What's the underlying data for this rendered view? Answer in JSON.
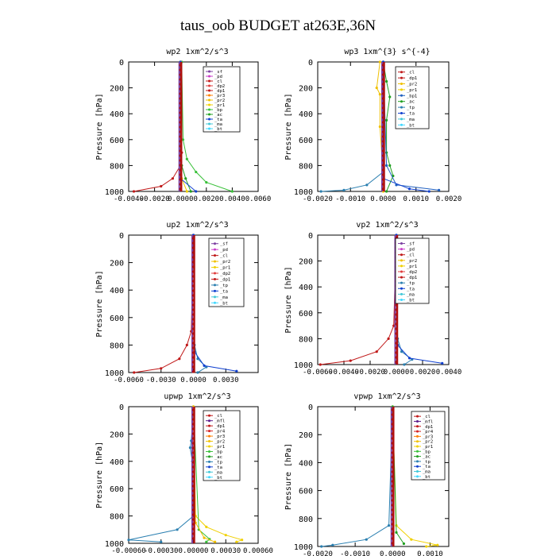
{
  "page": {
    "title": "taus_oob  BUDGET at263E,36N"
  },
  "chart_data": [
    {
      "type": "line",
      "title": "wp2   1xm^2/s^3",
      "ylabel": "Pressure [hPa]",
      "ylim": [
        0,
        1000
      ],
      "yticks": [
        "0",
        "200",
        "400",
        "600",
        "800",
        "1000"
      ],
      "xlim": [
        -0.004,
        0.006
      ],
      "xticks": [
        "-0.0040",
        "-0.0020",
        "0.0000",
        "0.0020",
        "0.0040",
        "0.0060"
      ],
      "legend": [
        "_sf",
        "_pd",
        "_cl",
        "_dp2",
        "_dp1",
        "_pr3",
        "_pr2",
        "_pr1",
        "_bp",
        "_ac",
        "_ta",
        "_ma",
        "_bt"
      ],
      "series": [
        {
          "name": "_dp1",
          "points": [
            [
              0.0,
              0
            ],
            [
              0.0001,
              700
            ],
            [
              0.0,
              800
            ],
            [
              -0.0006,
              900
            ],
            [
              -0.0015,
              960
            ],
            [
              -0.0036,
              1000
            ]
          ]
        },
        {
          "name": "_bp",
          "points": [
            [
              0.0001,
              0
            ],
            [
              0.0002,
              600
            ],
            [
              0.0005,
              750
            ],
            [
              0.0012,
              850
            ],
            [
              0.002,
              930
            ],
            [
              0.004,
              1000
            ]
          ]
        },
        {
          "name": "_ac",
          "points": [
            [
              0.0,
              0
            ],
            [
              0.0001,
              800
            ],
            [
              0.0004,
              900
            ],
            [
              0.0008,
              1000
            ]
          ]
        },
        {
          "name": "_pr1",
          "points": [
            [
              0.0,
              0
            ],
            [
              0.0001,
              900
            ],
            [
              0.0005,
              1000
            ]
          ]
        },
        {
          "name": "_ta",
          "points": [
            [
              0.0,
              0
            ],
            [
              0.0,
              900
            ],
            [
              0.0012,
              1000
            ]
          ]
        }
      ]
    },
    {
      "type": "line",
      "title": "wp3   1xm^{3} s^{-4}",
      "ylabel": "Pressure [hPa]",
      "ylim": [
        0,
        1000
      ],
      "yticks": [
        "0",
        "200",
        "400",
        "600",
        "800",
        "1000"
      ],
      "xlim": [
        -0.002,
        0.002
      ],
      "xticks": [
        "-0.0020",
        "-0.0010",
        "0.0000",
        "0.0010",
        "0.0020"
      ],
      "legend": [
        "_cl",
        "_dp1",
        "_pr2",
        "_pr1",
        "_bp1",
        "_ac",
        "_tp",
        "_ta",
        "_ma",
        "_bt"
      ],
      "series": [
        {
          "name": "_pr2",
          "points": [
            [
              -0.0001,
              0
            ],
            [
              -0.0002,
              200
            ],
            [
              -0.0001,
              250
            ],
            [
              -0.0001,
              500
            ],
            [
              0.0,
              900
            ],
            [
              0.0,
              1000
            ]
          ]
        },
        {
          "name": "_ac",
          "points": [
            [
              0.0,
              0
            ],
            [
              0.0001,
              150
            ],
            [
              0.0002,
              270
            ],
            [
              0.0001,
              450
            ],
            [
              0.0001,
              700
            ],
            [
              0.0002,
              800
            ],
            [
              0.0003,
              880
            ],
            [
              0.0001,
              1000
            ]
          ]
        },
        {
          "name": "_bp1",
          "points": [
            [
              0.0,
              0
            ],
            [
              0.0001,
              800
            ],
            [
              0.0004,
              950
            ],
            [
              0.0017,
              990
            ]
          ]
        },
        {
          "name": "_tp",
          "points": [
            [
              0.0,
              0
            ],
            [
              0.0,
              850
            ],
            [
              -0.0005,
              950
            ],
            [
              -0.0012,
              990
            ],
            [
              -0.0019,
              1000
            ]
          ]
        },
        {
          "name": "_ta",
          "points": [
            [
              0.0,
              0
            ],
            [
              0.0,
              900
            ],
            [
              0.0008,
              980
            ],
            [
              0.0014,
              1000
            ]
          ]
        }
      ]
    },
    {
      "type": "line",
      "title": "up2   1xm^2/s^3",
      "ylabel": "Pressure [hPa]",
      "ylim": [
        0,
        1000
      ],
      "yticks": [
        "0",
        "200",
        "400",
        "600",
        "800",
        "1000"
      ],
      "xlim": [
        -0.006,
        0.006
      ],
      "xticks": [
        "-0.0060",
        "-0.0030",
        "0.0000",
        "0.0030"
      ],
      "legend": [
        "_sf",
        "_pd",
        "_cl",
        "_pr2",
        "_pr1",
        "_dp2",
        "_dp1",
        "_tp",
        "_ta",
        "_ma",
        "_bt"
      ],
      "series": [
        {
          "name": "_dp1",
          "points": [
            [
              0.0,
              0
            ],
            [
              -0.0002,
              700
            ],
            [
              -0.0006,
              800
            ],
            [
              -0.0013,
              900
            ],
            [
              -0.003,
              970
            ],
            [
              -0.0055,
              1000
            ]
          ]
        },
        {
          "name": "_tp",
          "points": [
            [
              0.0,
              0
            ],
            [
              0.0001,
              800
            ],
            [
              0.0004,
              900
            ],
            [
              0.0012,
              960
            ],
            [
              0.0004,
              1000
            ]
          ]
        },
        {
          "name": "_ta",
          "points": [
            [
              0.0,
              0
            ],
            [
              0.0001,
              850
            ],
            [
              0.001,
              950
            ],
            [
              0.004,
              990
            ]
          ]
        }
      ]
    },
    {
      "type": "line",
      "title": "vp2   1xm^2/s^3",
      "ylabel": "Pressure [hPa]",
      "ylim": [
        0,
        1000
      ],
      "yticks": [
        "0",
        "200",
        "400",
        "600",
        "800",
        "1000"
      ],
      "xlim": [
        -0.006,
        0.004
      ],
      "xticks": [
        "-0.0060",
        "-0.0040",
        "-0.0020",
        "0.0000",
        "0.0020",
        "0.0040"
      ],
      "legend": [
        "_sf",
        "_pd",
        "_cl",
        "_pr2",
        "_pr1",
        "_dp2",
        "_dp1",
        "_tp",
        "_ta",
        "_ma",
        "_bt"
      ],
      "series": [
        {
          "name": "_dp1",
          "points": [
            [
              0.0,
              0
            ],
            [
              -0.0002,
              700
            ],
            [
              -0.0006,
              800
            ],
            [
              -0.0015,
              900
            ],
            [
              -0.0035,
              970
            ],
            [
              -0.0058,
              1000
            ]
          ]
        },
        {
          "name": "_tp",
          "points": [
            [
              0.0,
              0
            ],
            [
              0.0001,
              800
            ],
            [
              0.0004,
              900
            ],
            [
              0.0012,
              960
            ],
            [
              0.0006,
              1000
            ]
          ]
        },
        {
          "name": "_ta",
          "points": [
            [
              0.0,
              0
            ],
            [
              0.0001,
              850
            ],
            [
              0.001,
              950
            ],
            [
              0.0035,
              990
            ]
          ]
        }
      ]
    },
    {
      "type": "line",
      "title": "upwp   1xm^2/s^3",
      "ylabel": "Pressure [hPa]",
      "ylim": [
        0,
        1000
      ],
      "yticks": [
        "0",
        "200",
        "400",
        "600",
        "800",
        "1000"
      ],
      "xlim": [
        -0.0006,
        0.0006
      ],
      "xticks": [
        "-0.00060",
        "-0.00030",
        "0.00000",
        "0.00030",
        "0.00060"
      ],
      "legend": [
        "_cl",
        "_mfl",
        "_dp1",
        "_pr4",
        "_pr3",
        "_pr2",
        "_pr1",
        "_bp",
        "_ac",
        "_tp",
        "_ta",
        "_ma",
        "_bt"
      ],
      "series": [
        {
          "name": "_tp",
          "points": [
            [
              0.0,
              0
            ],
            [
              -2e-05,
              250
            ],
            [
              -3e-05,
              300
            ],
            [
              -1e-05,
              400
            ],
            [
              0.0,
              800
            ],
            [
              -0.00015,
              900
            ],
            [
              -0.0006,
              975
            ],
            [
              -0.0003,
              990
            ]
          ]
        },
        {
          "name": "_pr1",
          "points": [
            [
              0.0,
              0
            ],
            [
              2e-05,
              800
            ],
            [
              0.00012,
              880
            ],
            [
              0.0003,
              940
            ],
            [
              0.00045,
              975
            ],
            [
              0.0004,
              990
            ]
          ]
        },
        {
          "name": "_bp",
          "points": [
            [
              0.0,
              0
            ],
            [
              5e-05,
              900
            ],
            [
              0.00015,
              970
            ],
            [
              0.00012,
              990
            ]
          ]
        },
        {
          "name": "_pr2",
          "points": [
            [
              0.0,
              0
            ],
            [
              2e-05,
              850
            ],
            [
              0.0001,
              960
            ],
            [
              0.0002,
              990
            ]
          ]
        }
      ]
    },
    {
      "type": "line",
      "title": "vpwp   1xm^2/s^3",
      "ylabel": "Pressure [hPa]",
      "ylim": [
        0,
        1000
      ],
      "yticks": [
        "0",
        "200",
        "400",
        "600",
        "800",
        "1000"
      ],
      "xlim": [
        -0.002,
        0.0015
      ],
      "xticks": [
        "-0.0020",
        "-0.0010",
        "0.0000",
        "0.0010"
      ],
      "legend": [
        "_cl",
        "_mfl",
        "_dp1",
        "_pr4",
        "_pr3",
        "_pr2",
        "_pr1",
        "_bp",
        "_ac",
        "_tp",
        "_ta",
        "_ma",
        "_bt"
      ],
      "series": [
        {
          "name": "_tp",
          "points": [
            [
              0.0,
              0
            ],
            [
              -0.0001,
              850
            ],
            [
              -0.0007,
              950
            ],
            [
              -0.0016,
              990
            ],
            [
              -0.0019,
              1000
            ]
          ]
        },
        {
          "name": "_pr1",
          "points": [
            [
              0.0,
              0
            ],
            [
              0.0001,
              850
            ],
            [
              0.0005,
              950
            ],
            [
              0.0012,
              990
            ],
            [
              0.0009,
              1000
            ]
          ]
        },
        {
          "name": "_ac",
          "points": [
            [
              0.0,
              0
            ],
            [
              0.0001,
              900
            ],
            [
              0.0003,
              980
            ]
          ]
        }
      ]
    }
  ]
}
